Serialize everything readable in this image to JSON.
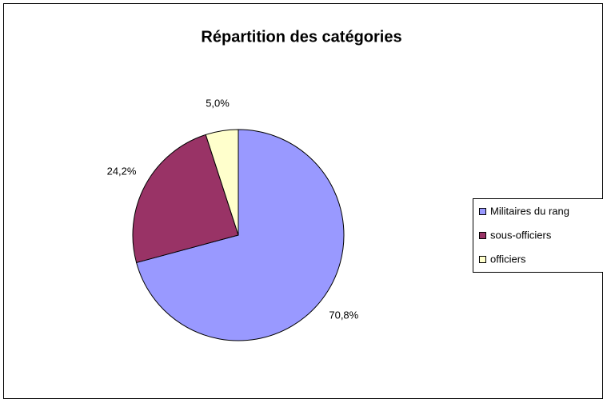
{
  "chart_data": {
    "type": "pie",
    "title": "Répartition des catégories",
    "categories": [
      "Militaires du rang",
      "sous-officiers",
      "officiers"
    ],
    "values": [
      70.8,
      24.2,
      5.0
    ],
    "value_labels": [
      "70,8%",
      "24,2%",
      "5,0%"
    ],
    "colors": [
      "#9999ff",
      "#993366",
      "#ffffcc"
    ],
    "legend": "right"
  }
}
